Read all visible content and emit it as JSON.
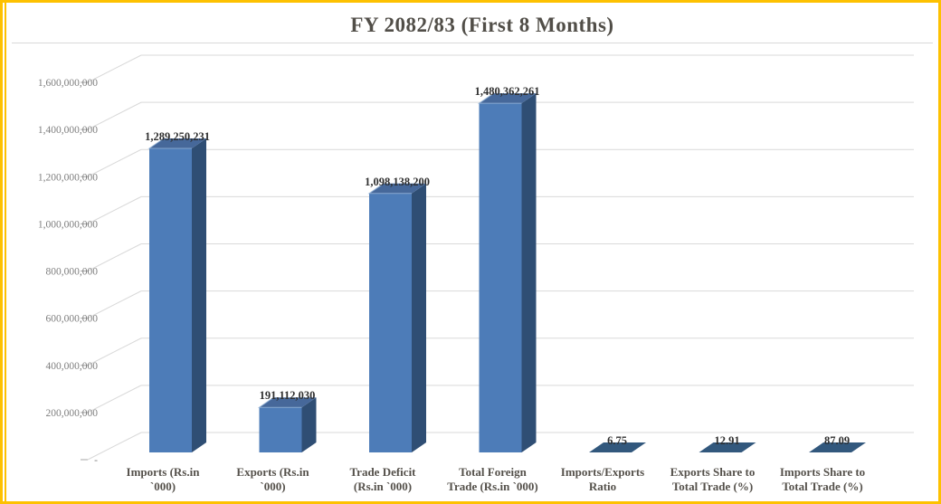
{
  "window": {
    "border_color": "#FDC101",
    "background": "#FFFFFF"
  },
  "chart_data": {
    "type": "bar",
    "style": "3d-clustered-column",
    "title": "FY 2082/83 (First 8 Months)",
    "xlabel": "",
    "ylabel": "",
    "legend": "none",
    "grid": true,
    "ylim": [
      0,
      1600000000
    ],
    "y_ticks": [
      {
        "label": "1,600,000,000",
        "value": 1600000000
      },
      {
        "label": "1,400,000,000",
        "value": 1400000000
      },
      {
        "label": "1,200,000,000",
        "value": 1200000000
      },
      {
        "label": "1,000,000,000",
        "value": 1000000000
      },
      {
        "label": "800,000,000",
        "value": 800000000
      },
      {
        "label": "600,000,000",
        "value": 600000000
      },
      {
        "label": "400,000,000",
        "value": 400000000
      },
      {
        "label": "200,000,000",
        "value": 200000000
      },
      {
        "label": "-",
        "value": 0
      }
    ],
    "categories": [
      "Imports (Rs.in\n`000)",
      "Exports (Rs.in\n`000)",
      "Trade Deficit\n(Rs.in `000)",
      "Total  Foreign\nTrade (Rs.in `000)",
      "Imports/Exports\nRatio",
      "Exports Share to\nTotal Trade (%)",
      "Imports Share to\nTotal Trade (%)"
    ],
    "values": [
      1289250231,
      191112030,
      1098138200,
      1480362261,
      6.75,
      12.91,
      87.09
    ],
    "value_labels": [
      "1,289,250,231",
      "191,112,030",
      "1,098,138,200",
      "1,480,362,261",
      "6.75",
      "12.91",
      "87.09"
    ],
    "colors": {
      "border": "#FDC101",
      "gridline": "#D9D9D9",
      "tick": "#A6A6A6",
      "title_text": "#514E48",
      "axis_text": "#7F7F7F",
      "category_text": "#55514B",
      "value_text": "#2F2F2F",
      "bar_front": "#4D7CB8",
      "bar_top": "#46689A",
      "bar_side": "#2F4E74",
      "bar_flat_top": "#32587D",
      "bar_highlight": "#8FAFD4"
    }
  }
}
